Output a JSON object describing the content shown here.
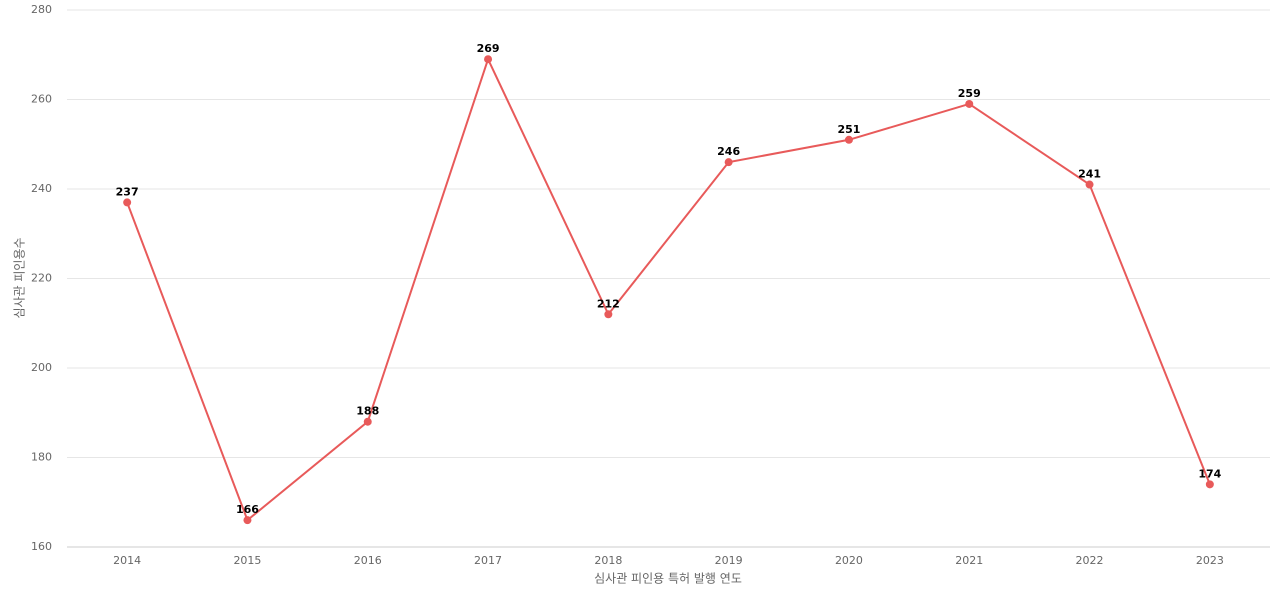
{
  "chart_data": {
    "type": "line",
    "x_label": "심사관 피인용 특허 발행 연도",
    "y_label": "심사관 피인용수",
    "categories": [
      "2014",
      "2015",
      "2016",
      "2017",
      "2018",
      "2019",
      "2020",
      "2021",
      "2022",
      "2023"
    ],
    "series": [
      {
        "color": "#e85a5a",
        "values": [
          237,
          166,
          188,
          269,
          212,
          246,
          251,
          259,
          241,
          174
        ]
      }
    ],
    "ylim": [
      160,
      280
    ],
    "yticks": [
      160,
      180,
      200,
      220,
      240,
      260,
      280
    ],
    "grid": true
  }
}
